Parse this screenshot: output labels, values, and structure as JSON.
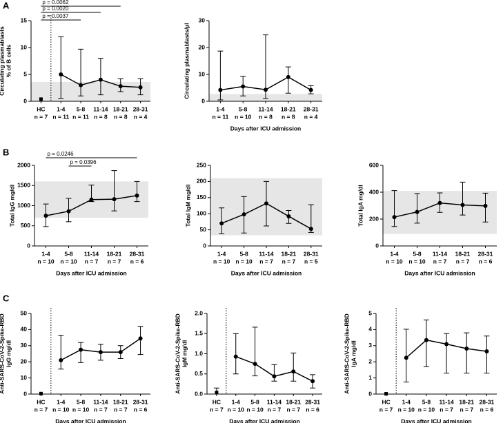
{
  "panel_labels": [
    "A",
    "B",
    "C"
  ],
  "chart_data": [
    {
      "type": "line",
      "ylabel": [
        "Circulating plasmablasts",
        "% of B cells"
      ],
      "categories": [
        "HC",
        "1-4",
        "5-8",
        "11-14",
        "18-21",
        "28-31"
      ],
      "n_labels": [
        "n = 7",
        "n = 11",
        "n = 11",
        "n = 8",
        "n = 8",
        "n = 4"
      ],
      "values": [
        0.4,
        5,
        3,
        4,
        2.8,
        2.6
      ],
      "lower": [
        null,
        0.5,
        1,
        1.2,
        1.8,
        1.2
      ],
      "upper": [
        null,
        12,
        9.7,
        8,
        4.2,
        4.2
      ],
      "reference_range": [
        0,
        3.6
      ],
      "annotations": [
        "p = 0.0062",
        "p = 0.0020",
        "p = 0.0037"
      ],
      "ylim": [
        0,
        15
      ],
      "yticks": [
        0,
        5,
        10,
        15
      ],
      "color": "#000000"
    },
    {
      "type": "line",
      "ylabel": [
        "Circulating plasmablasts/µl"
      ],
      "xlabel": "Days after ICU admission",
      "categories": [
        "1-4",
        "5-8",
        "11-14",
        "18-21",
        "28-31"
      ],
      "n_labels": [
        "n = 11",
        "n = 10",
        "n = 8",
        "n = 8",
        "n = 4"
      ],
      "values": [
        4.2,
        5.5,
        4.3,
        9,
        4.2
      ],
      "lower": [
        0.5,
        2,
        1,
        3,
        2.8
      ],
      "upper": [
        18.7,
        9.3,
        24.7,
        12.8,
        5.8
      ],
      "reference_range": [
        0,
        2.7
      ],
      "ylim": [
        0,
        30
      ],
      "yticks": [
        0,
        10,
        20,
        30
      ],
      "color": "#000000"
    },
    {
      "type": "line",
      "ylabel": [
        "Total IgG mg/dl"
      ],
      "xlabel": "Days after ICU admission",
      "categories": [
        "1-4",
        "5-8",
        "11-14",
        "18-21",
        "28-31"
      ],
      "n_labels": [
        "n = 10",
        "n = 10",
        "n = 7",
        "n = 7",
        "n = 6"
      ],
      "values": [
        750,
        860,
        1150,
        1160,
        1250
      ],
      "lower": [
        480,
        600,
        1100,
        870,
        1100
      ],
      "upper": [
        1040,
        1180,
        1510,
        1870,
        1600
      ],
      "reference_range": [
        700,
        1600
      ],
      "annotations": [
        "p = 0.0246",
        "p = 0.0396"
      ],
      "ylim": [
        0,
        2000
      ],
      "yticks": [
        0,
        500,
        1000,
        1500,
        2000
      ],
      "color": "#000000"
    },
    {
      "type": "line",
      "ylabel": [
        "Total IgM mg/dl"
      ],
      "xlabel": "Days after ICU admission",
      "categories": [
        "1-4",
        "5-8",
        "11-14",
        "18-21",
        "28-31"
      ],
      "n_labels": [
        "n = 10",
        "n = 10",
        "n = 7",
        "n = 7",
        "n = 5"
      ],
      "values": [
        70,
        98,
        132,
        92,
        53
      ],
      "lower": [
        38,
        40,
        62,
        70,
        42
      ],
      "upper": [
        118,
        153,
        200,
        110,
        128
      ],
      "reference_range": [
        33,
        210
      ],
      "ylim": [
        0,
        250
      ],
      "yticks": [
        0,
        50,
        100,
        150,
        200,
        250
      ],
      "color": "#000000"
    },
    {
      "type": "line",
      "ylabel": [
        "Total IgA mg/dl"
      ],
      "xlabel": "Days after ICU admission",
      "categories": [
        "1-4",
        "5-8",
        "11-14",
        "18-21",
        "28-31"
      ],
      "n_labels": [
        "n = 10",
        "n = 10",
        "n = 7",
        "n = 7",
        "n = 6"
      ],
      "values": [
        215,
        253,
        320,
        305,
        298
      ],
      "lower": [
        145,
        170,
        250,
        230,
        178
      ],
      "upper": [
        412,
        390,
        395,
        475,
        393
      ],
      "reference_range": [
        90,
        410
      ],
      "ylim": [
        0,
        600
      ],
      "yticks": [
        0,
        200,
        400,
        600
      ],
      "color": "#000000"
    },
    {
      "type": "line",
      "ylabel": [
        "Anti-SARS-CoV-2-Spike-RBD",
        "IgG mg/dl"
      ],
      "xlabel": "Days after ICU admission",
      "categories": [
        "HC",
        "1-4",
        "5-8",
        "11-14",
        "18-21",
        "28-31"
      ],
      "n_labels": [
        "n = 7",
        "n = 10",
        "n = 10",
        "n = 7",
        "n = 7",
        "n = 6"
      ],
      "values": [
        0.3,
        21,
        27.5,
        26,
        26,
        34.5
      ],
      "lower": [
        null,
        15.5,
        19.5,
        21,
        22,
        24.5
      ],
      "upper": [
        null,
        36.5,
        32,
        31,
        30,
        42
      ],
      "ylim": [
        0,
        50
      ],
      "yticks": [
        0,
        10,
        20,
        30,
        40,
        50
      ],
      "color": "#000000"
    },
    {
      "type": "line",
      "ylabel": [
        "Anti-SARS-CoV-2-Spike-RBD",
        "IgM mg/dl"
      ],
      "xlabel": "Days after ICU admission",
      "categories": [
        "HC",
        "1-4",
        "5-8",
        "11-14",
        "18-21",
        "28-31"
      ],
      "n_labels": [
        "n = 7",
        "n = 10",
        "n = 10",
        "n = 7",
        "n = 7",
        "n = 6"
      ],
      "values": [
        0.04,
        0.93,
        0.75,
        0.44,
        0.56,
        0.32
      ],
      "lower": [
        0,
        0.5,
        0.45,
        0.32,
        0.32,
        0.15
      ],
      "upper": [
        0.15,
        1.5,
        1.66,
        0.73,
        1.02,
        0.48
      ],
      "ylim": [
        0,
        2
      ],
      "yticks": [
        {
          "value": 0,
          "label": "0.0"
        },
        0.5,
        {
          "value": 1,
          "label": "1.0"
        },
        1.5,
        {
          "value": 2,
          "label": "2.0"
        }
      ],
      "color": "#000000"
    },
    {
      "type": "line",
      "ylabel": [
        "Anti-SARS-CoV-2-Spike-RBD",
        "IgA mg/dl"
      ],
      "xlabel": "Days after ICU admission",
      "categories": [
        "HC",
        "1-4",
        "5-8",
        "11-14",
        "18-21",
        "28-31"
      ],
      "n_labels": [
        "n = 7",
        "n = 10",
        "n = 10",
        "n = 7",
        "n = 7",
        "n = 6"
      ],
      "values": [
        0.02,
        2.25,
        3.35,
        3.1,
        2.82,
        2.65
      ],
      "lower": [
        null,
        0.75,
        1.7,
        1.3,
        1.3,
        1.3
      ],
      "upper": [
        null,
        4.02,
        4.6,
        3.75,
        3.8,
        3.6
      ],
      "ylim": [
        0,
        5
      ],
      "yticks": [
        0,
        1,
        2,
        3,
        4,
        5
      ],
      "color": "#000000"
    }
  ]
}
